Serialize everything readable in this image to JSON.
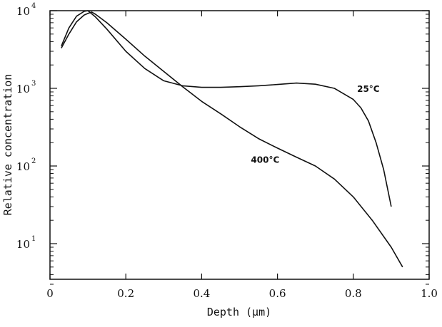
{
  "chart_data": {
    "type": "line",
    "title": "",
    "xlabel": "Depth (µm)",
    "ylabel": "Relative concentration",
    "xlim": [
      0,
      1.0
    ],
    "ylim": [
      3,
      10000
    ],
    "yscale": "log",
    "grid": false,
    "x_ticks": [
      0,
      0.2,
      0.4,
      0.6,
      0.8,
      1.0
    ],
    "x_tick_labels": [
      "0",
      "0.2",
      "0.4",
      "0.6",
      "0.8",
      "1.0"
    ],
    "y_ticks": [
      10,
      100,
      1000,
      10000
    ],
    "y_tick_labels": [
      {
        "base": "10",
        "exp": "1"
      },
      {
        "base": "10",
        "exp": "2"
      },
      {
        "base": "10",
        "exp": "3"
      },
      {
        "base": "10",
        "exp": "4"
      }
    ],
    "series": [
      {
        "name": "25°C",
        "label_at": [
          0.81,
          900
        ],
        "points": [
          [
            0.03,
            3500
          ],
          [
            0.05,
            6000
          ],
          [
            0.07,
            8500
          ],
          [
            0.09,
            9800
          ],
          [
            0.1,
            10000
          ],
          [
            0.12,
            8300
          ],
          [
            0.15,
            5800
          ],
          [
            0.2,
            3000
          ],
          [
            0.25,
            1800
          ],
          [
            0.3,
            1250
          ],
          [
            0.35,
            1080
          ],
          [
            0.4,
            1030
          ],
          [
            0.45,
            1030
          ],
          [
            0.5,
            1050
          ],
          [
            0.55,
            1080
          ],
          [
            0.6,
            1120
          ],
          [
            0.65,
            1170
          ],
          [
            0.7,
            1130
          ],
          [
            0.75,
            1000
          ],
          [
            0.8,
            720
          ],
          [
            0.82,
            560
          ],
          [
            0.84,
            380
          ],
          [
            0.86,
            200
          ],
          [
            0.88,
            90
          ],
          [
            0.9,
            30
          ]
        ]
      },
      {
        "name": "400°C",
        "label_at": [
          0.53,
          110
        ],
        "points": [
          [
            0.03,
            3300
          ],
          [
            0.05,
            5000
          ],
          [
            0.07,
            7200
          ],
          [
            0.09,
            8800
          ],
          [
            0.1,
            9200
          ],
          [
            0.11,
            9600
          ],
          [
            0.12,
            9000
          ],
          [
            0.15,
            7000
          ],
          [
            0.2,
            4300
          ],
          [
            0.25,
            2600
          ],
          [
            0.3,
            1650
          ],
          [
            0.35,
            1050
          ],
          [
            0.4,
            680
          ],
          [
            0.45,
            470
          ],
          [
            0.5,
            320
          ],
          [
            0.55,
            225
          ],
          [
            0.6,
            170
          ],
          [
            0.65,
            130
          ],
          [
            0.7,
            100
          ],
          [
            0.75,
            68
          ],
          [
            0.8,
            40
          ],
          [
            0.85,
            20
          ],
          [
            0.9,
            9
          ],
          [
            0.93,
            5
          ]
        ]
      }
    ]
  }
}
